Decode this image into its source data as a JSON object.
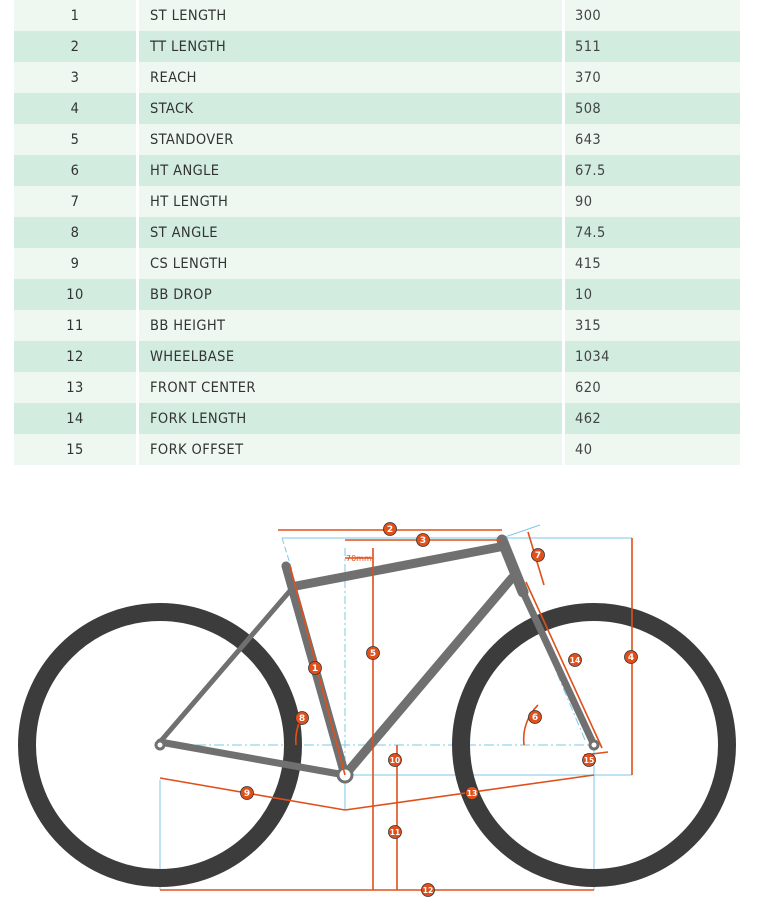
{
  "geometry_table": {
    "rows": [
      {
        "num": "1",
        "label": "ST LENGTH",
        "value": "300"
      },
      {
        "num": "2",
        "label": "TT LENGTH",
        "value": "511"
      },
      {
        "num": "3",
        "label": "REACH",
        "value": "370"
      },
      {
        "num": "4",
        "label": "STACK",
        "value": "508"
      },
      {
        "num": "5",
        "label": "STANDOVER",
        "value": "643"
      },
      {
        "num": "6",
        "label": "HT ANGLE",
        "value": "67.5"
      },
      {
        "num": "7",
        "label": "HT LENGTH",
        "value": "90"
      },
      {
        "num": "8",
        "label": "ST ANGLE",
        "value": "74.5"
      },
      {
        "num": "9",
        "label": "CS LENGTH",
        "value": "415"
      },
      {
        "num": "10",
        "label": "BB DROP",
        "value": "10"
      },
      {
        "num": "11",
        "label": "BB HEIGHT",
        "value": "315"
      },
      {
        "num": "12",
        "label": "WHEELBASE",
        "value": "1034"
      },
      {
        "num": "13",
        "label": "FRONT CENTER",
        "value": "620"
      },
      {
        "num": "14",
        "label": "FORK LENGTH",
        "value": "462"
      },
      {
        "num": "15",
        "label": "FORK OFFSET",
        "value": "40"
      }
    ]
  },
  "diagram": {
    "offset_label": "70mm",
    "markers": [
      "1",
      "2",
      "3",
      "4",
      "5",
      "6",
      "7",
      "8",
      "9",
      "10",
      "11",
      "12",
      "13",
      "14",
      "15"
    ],
    "colors": {
      "tire": "#3c3c3c",
      "frame": "#707070",
      "dimension": "#e0501a",
      "guide": "#7ec9e8",
      "row_light": "#eef8f1",
      "row_dark": "#d2ede0"
    }
  }
}
